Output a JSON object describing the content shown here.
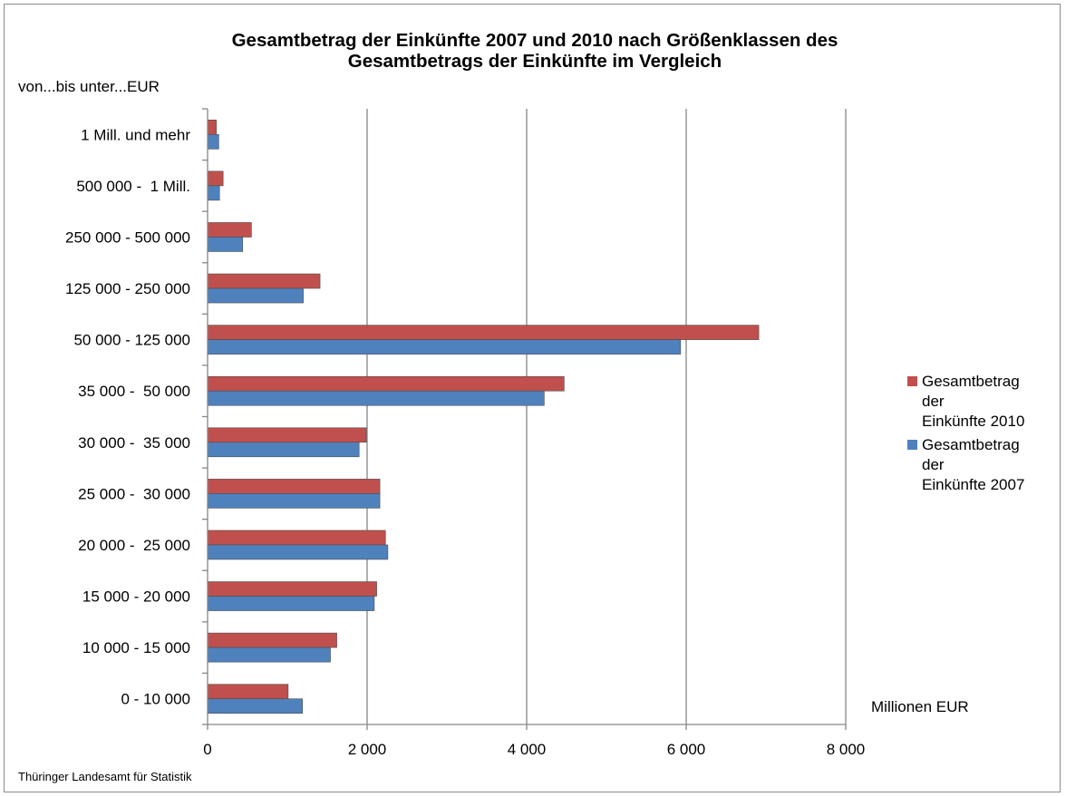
{
  "chart_data": {
    "type": "bar",
    "orientation": "horizontal",
    "title_lines": [
      "Gesamtbetrag der Einkünfte 2007 und 2010 nach Größenklassen des",
      "Gesamtbetrags der Einkünfte im Vergleich"
    ],
    "y_unit_label": "von...bis unter...EUR",
    "x_unit_label": "Millionen EUR",
    "categories": [
      "1 Mill. und mehr",
      "500 000 -  1 Mill.",
      "250 000 - 500 000",
      "125 000 - 250 000",
      "50 000 - 125 000",
      "35 000 -  50 000",
      "30 000 -  35 000",
      "25 000 -  30 000",
      "20 000 -  25 000",
      "15 000 - 20 000",
      "10 000 - 15 000",
      "0 - 10 000"
    ],
    "series": [
      {
        "name": "Gesamtbetrag der Einkünfte 2010",
        "color": "#c0504d",
        "values": [
          110,
          195,
          550,
          1410,
          6910,
          4470,
          1990,
          2160,
          2230,
          2120,
          1620,
          1010
        ]
      },
      {
        "name": "Gesamtbetrag der Einkünfte 2007",
        "color": "#4f81bd",
        "values": [
          140,
          150,
          440,
          1200,
          5930,
          4220,
          1900,
          2160,
          2260,
          2090,
          1540,
          1190
        ]
      }
    ],
    "legend_labels": [
      "Gesamtbetrag\nder\nEinkünfte 2010",
      "Gesamtbetrag\nder\nEinkünfte 2007"
    ],
    "xlim": [
      0,
      8000
    ],
    "xticks": [
      0,
      2000,
      4000,
      6000,
      8000
    ],
    "xtick_labels": [
      "0",
      "2 000",
      "4 000",
      "6 000",
      "8 000"
    ],
    "grid": "vertical",
    "legend_position": "right"
  },
  "source": "Thüringer Landesamt für Statistik"
}
